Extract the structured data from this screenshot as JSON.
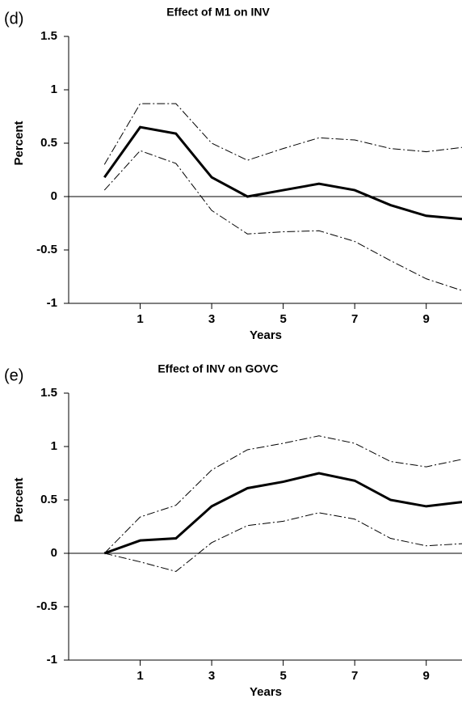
{
  "chart_data": [
    {
      "type": "line",
      "panel": "(d)",
      "title": "Effect of M1 on INV",
      "xlabel": "Years",
      "ylabel": "Percent",
      "x": [
        0,
        1,
        2,
        3,
        4,
        5,
        6,
        7,
        8,
        9,
        10
      ],
      "series": [
        {
          "color": "#000000",
          "style": "solid",
          "values": [
            0.18,
            0.65,
            0.59,
            0.18,
            0.0,
            0.06,
            0.12,
            0.06,
            -0.08,
            -0.18,
            -0.21
          ]
        },
        {
          "color": "#000000",
          "style": "dashdot",
          "values": [
            0.3,
            0.87,
            0.87,
            0.5,
            0.34,
            0.45,
            0.55,
            0.53,
            0.45,
            0.42,
            0.46
          ]
        },
        {
          "color": "#000000",
          "style": "dashdot",
          "values": [
            0.06,
            0.43,
            0.31,
            -0.13,
            -0.35,
            -0.33,
            -0.32,
            -0.42,
            -0.6,
            -0.77,
            -0.88
          ]
        }
      ],
      "xlim": [
        -1,
        10
      ],
      "xticks": [
        1,
        3,
        5,
        7,
        9
      ],
      "ylim": [
        -1,
        1.5
      ],
      "yticks": [
        -1,
        -0.5,
        0,
        0.5,
        1,
        1.5
      ],
      "zero_line": true
    },
    {
      "type": "line",
      "panel": "(e)",
      "title": "Effect of INV on GOVC",
      "xlabel": "Years",
      "ylabel": "Percent",
      "x": [
        0,
        1,
        2,
        3,
        4,
        5,
        6,
        7,
        8,
        9,
        10
      ],
      "series": [
        {
          "color": "#000000",
          "style": "solid",
          "values": [
            0,
            0.12,
            0.14,
            0.44,
            0.61,
            0.67,
            0.75,
            0.68,
            0.5,
            0.44,
            0.48
          ]
        },
        {
          "color": "#000000",
          "style": "dashdot",
          "values": [
            0,
            0.34,
            0.45,
            0.78,
            0.97,
            1.03,
            1.1,
            1.03,
            0.86,
            0.81,
            0.88
          ]
        },
        {
          "color": "#000000",
          "style": "dashdot",
          "values": [
            0,
            -0.08,
            -0.17,
            0.1,
            0.26,
            0.3,
            0.38,
            0.32,
            0.14,
            0.07,
            0.09
          ]
        }
      ],
      "xlim": [
        -1,
        10
      ],
      "xticks": [
        1,
        3,
        5,
        7,
        9
      ],
      "ylim": [
        -1,
        1.5
      ],
      "yticks": [
        -1,
        -0.5,
        0,
        0.5,
        1,
        1.5
      ],
      "zero_line": true
    }
  ]
}
